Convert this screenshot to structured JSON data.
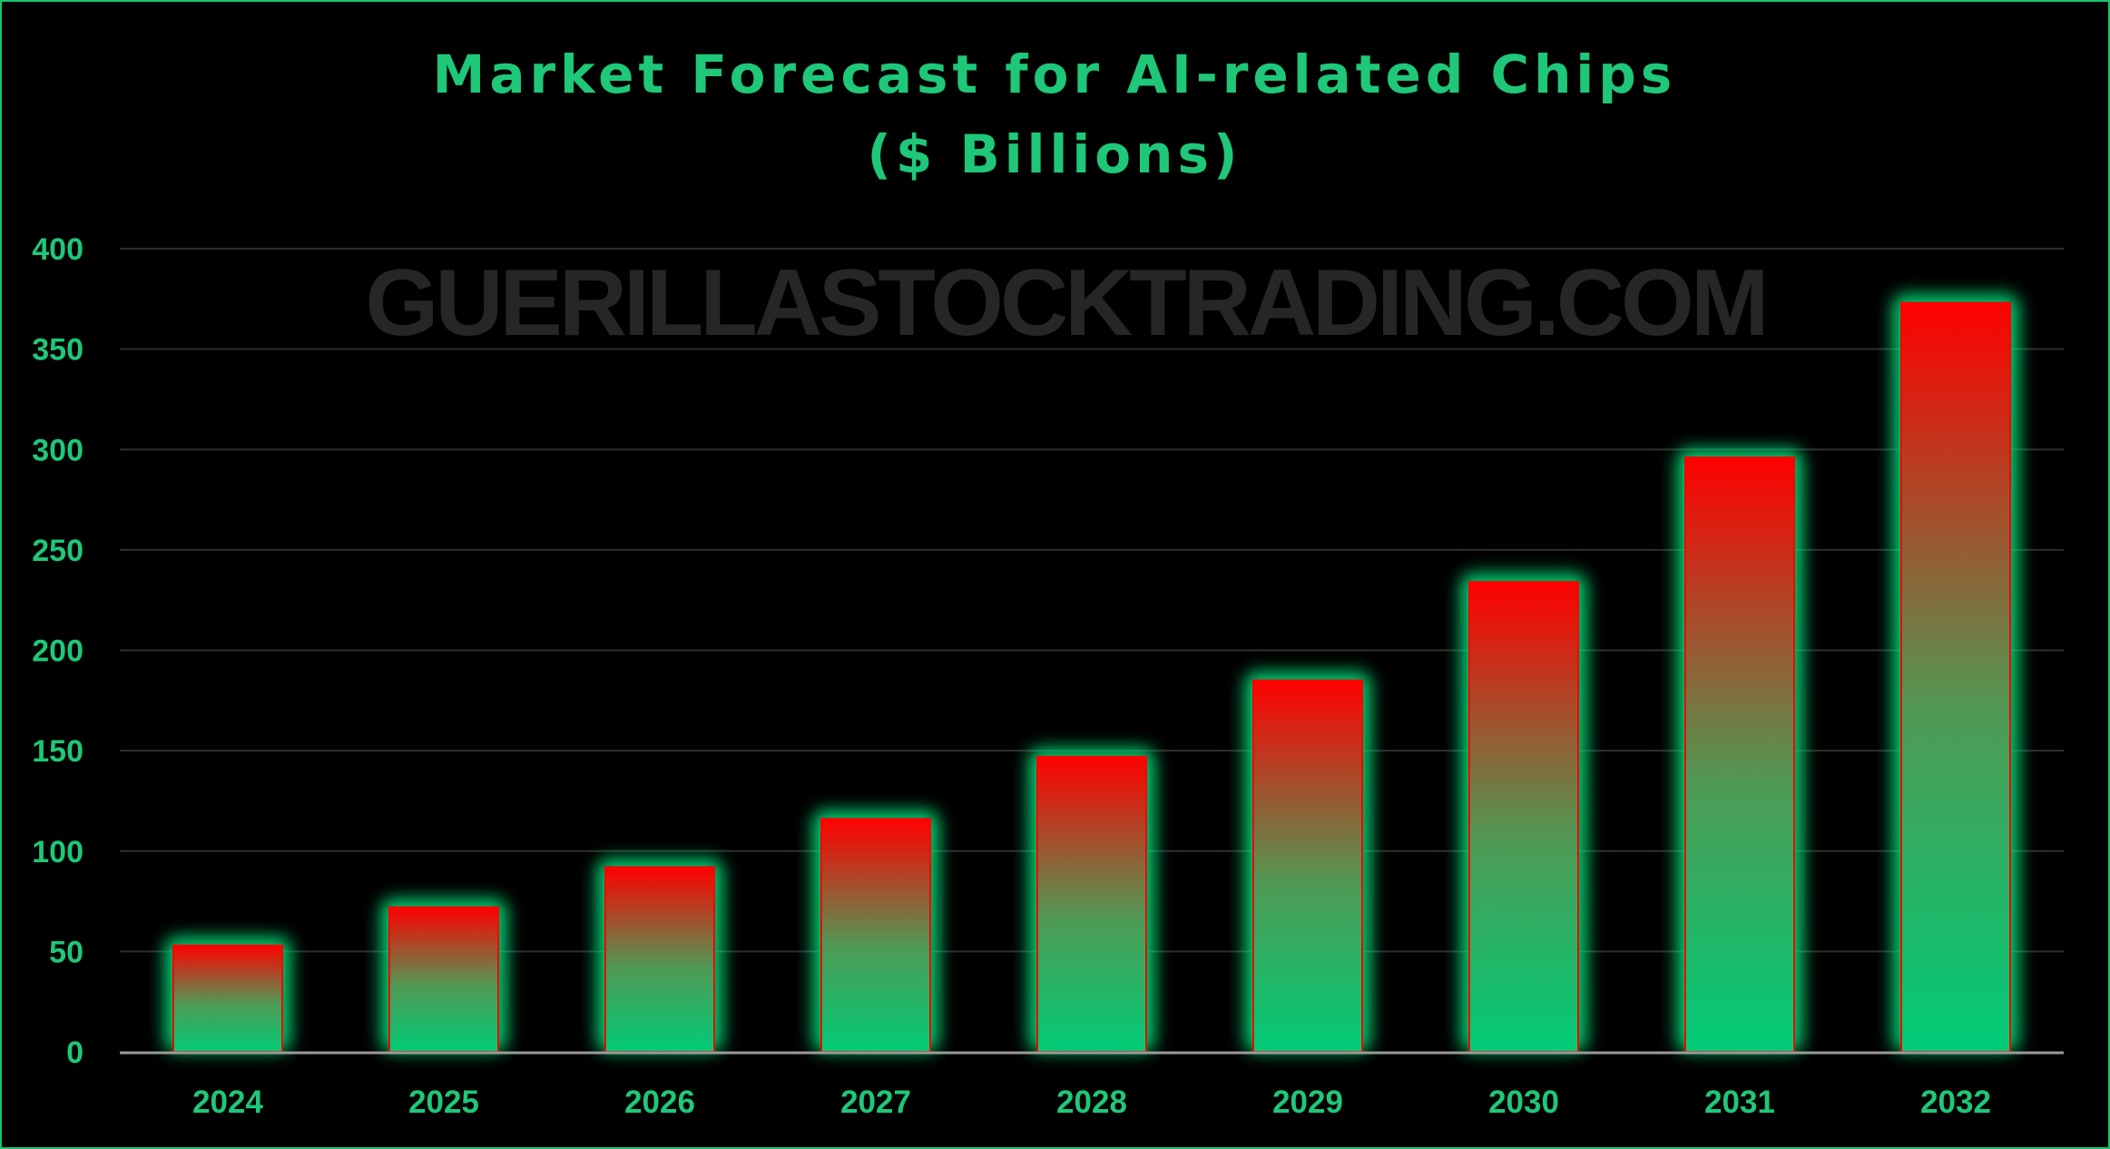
{
  "colors": {
    "background": "#000000",
    "border": "#19c36b",
    "text": "#1ec878",
    "bar_top": "#ff0000",
    "bar_bottom": "#00cc77",
    "bar_glow": "#00e07a",
    "grid": "#2e2e2e",
    "axis": "#9a9a9a",
    "watermark": "#262626"
  },
  "watermark": "GUERILLASTOCKTRADING.COM",
  "chart_data": {
    "type": "bar",
    "title": [
      "Market Forecast for AI-related Chips",
      "($ Billions)"
    ],
    "xlabel": "",
    "ylabel": "",
    "categories": [
      "2024",
      "2025",
      "2026",
      "2027",
      "2028",
      "2029",
      "2030",
      "2031",
      "2032"
    ],
    "values": [
      53,
      72,
      92,
      116,
      147,
      185,
      234,
      296,
      373
    ],
    "ylim": [
      0,
      400
    ],
    "yticks": [
      0,
      50,
      100,
      150,
      200,
      250,
      300,
      350,
      400
    ],
    "grid": true,
    "legend": "none"
  }
}
